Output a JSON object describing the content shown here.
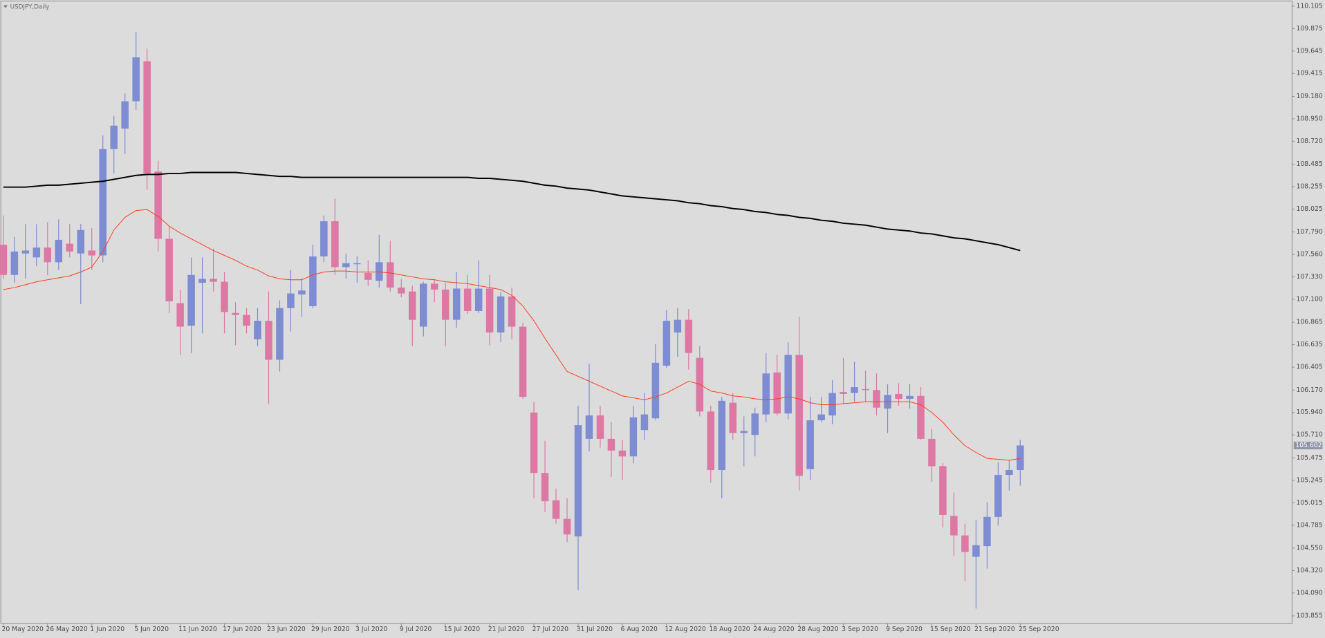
{
  "chart_data": {
    "type": "candlestick",
    "title": "USDJPY,Daily",
    "categories": [
      "20 May 2020",
      null,
      null,
      null,
      "26 May 2020",
      null,
      null,
      null,
      "1 Jun 2020",
      null,
      null,
      null,
      "5 Jun 2020",
      null,
      null,
      null,
      "11 Jun 2020",
      null,
      null,
      null,
      "17 Jun 2020",
      null,
      null,
      null,
      "23 Jun 2020",
      null,
      null,
      null,
      "29 Jun 2020",
      null,
      null,
      null,
      "3 Jul 2020",
      null,
      null,
      null,
      "9 Jul 2020",
      null,
      null,
      null,
      "15 Jul 2020",
      null,
      null,
      null,
      "21 Jul 2020",
      null,
      null,
      null,
      "27 Jul 2020",
      null,
      null,
      null,
      "31 Jul 2020",
      null,
      null,
      null,
      "6 Aug 2020",
      null,
      null,
      null,
      "12 Aug 2020",
      null,
      null,
      null,
      "18 Aug 2020",
      null,
      null,
      null,
      "24 Aug 2020",
      null,
      null,
      null,
      "28 Aug 2020",
      null,
      null,
      null,
      "3 Sep 2020",
      null,
      null,
      null,
      "9 Sep 2020",
      null,
      null,
      null,
      "15 Sep 2020",
      null,
      null,
      null,
      "21 Sep 2020",
      null,
      null,
      null,
      "25 Sep 2020"
    ],
    "open": [
      107.66,
      107.35,
      107.57,
      107.53,
      107.63,
      107.48,
      107.67,
      107.57,
      107.6,
      107.55,
      108.64,
      108.85,
      109.13,
      109.54,
      108.41,
      107.72,
      107.06,
      106.83,
      107.27,
      107.31,
      107.28,
      106.96,
      106.94,
      106.69,
      106.88,
      106.48,
      107.01,
      107.15,
      107.03,
      107.54,
      107.9,
      107.43,
      107.46,
      107.37,
      107.29,
      107.48,
      107.22,
      107.18,
      106.82,
      107.26,
      107.2,
      106.89,
      107.21,
      106.98,
      107.21,
      106.76,
      107.13,
      106.82,
      105.94,
      105.32,
      105.04,
      104.85,
      104.67,
      105.67,
      105.91,
      105.67,
      105.55,
      105.49,
      105.76,
      105.88,
      106.42,
      106.76,
      106.89,
      106.5,
      105.95,
      105.35,
      106.04,
      105.73,
      105.71,
      105.92,
      106.35,
      105.93,
      106.53,
      105.36,
      105.86,
      105.91,
      106.15,
      106.14,
      106.18,
      106.17,
      105.98,
      106.13,
      106.08,
      106.11,
      105.67,
      105.39,
      104.88,
      104.68,
      104.46,
      104.57,
      104.87,
      105.3,
      105.35
    ],
    "high": [
      107.96,
      107.74,
      107.87,
      107.87,
      107.89,
      107.92,
      107.87,
      107.87,
      107.83,
      108.78,
      108.98,
      109.21,
      109.84,
      109.67,
      108.52,
      107.85,
      107.2,
      107.53,
      107.53,
      107.62,
      107.38,
      107.07,
      107.01,
      107.01,
      107.18,
      107.09,
      107.4,
      107.31,
      107.66,
      107.96,
      108.13,
      107.57,
      107.54,
      107.5,
      107.76,
      107.7,
      107.31,
      107.24,
      107.28,
      107.31,
      107.27,
      107.38,
      107.35,
      107.5,
      107.35,
      107.18,
      107.22,
      106.86,
      106.05,
      105.65,
      105.16,
      105.06,
      106.01,
      106.44,
      106.01,
      105.84,
      105.66,
      106.01,
      106.14,
      106.64,
      106.99,
      107.01,
      107.0,
      106.62,
      106.01,
      106.1,
      106.14,
      105.9,
      105.99,
      106.55,
      106.53,
      106.66,
      106.92,
      106.1,
      106.1,
      106.27,
      106.5,
      106.46,
      106.37,
      106.34,
      106.23,
      106.24,
      106.23,
      106.2,
      105.77,
      105.42,
      105.12,
      104.8,
      104.84,
      105.02,
      105.43,
      105.45,
      105.66
    ],
    "low": [
      107.31,
      107.27,
      107.31,
      107.44,
      107.35,
      107.4,
      107.53,
      107.05,
      107.4,
      107.48,
      108.39,
      108.59,
      109.04,
      108.22,
      107.59,
      106.96,
      106.53,
      106.55,
      106.75,
      107.18,
      106.75,
      106.63,
      106.75,
      106.62,
      106.03,
      106.36,
      106.77,
      106.92,
      107.01,
      107.48,
      107.35,
      107.31,
      107.27,
      107.24,
      107.22,
      107.18,
      107.12,
      106.62,
      106.72,
      107.07,
      106.62,
      106.81,
      106.95,
      106.96,
      106.63,
      106.66,
      106.69,
      106.08,
      105.06,
      104.92,
      104.8,
      104.61,
      104.12,
      105.54,
      105.58,
      105.28,
      105.25,
      105.42,
      105.66,
      105.86,
      106.4,
      106.51,
      106.38,
      105.9,
      105.22,
      105.06,
      105.66,
      105.39,
      105.49,
      105.84,
      105.91,
      105.87,
      105.14,
      105.25,
      105.84,
      105.82,
      106.03,
      106.05,
      106.05,
      105.91,
      105.73,
      106.01,
      105.98,
      105.66,
      105.23,
      104.76,
      104.47,
      104.21,
      103.93,
      104.34,
      104.78,
      105.14,
      105.19
    ],
    "close": [
      107.35,
      107.59,
      107.6,
      107.63,
      107.48,
      107.71,
      107.59,
      107.81,
      107.55,
      108.64,
      108.88,
      109.13,
      109.58,
      108.39,
      107.72,
      107.08,
      106.82,
      107.35,
      107.31,
      107.28,
      106.97,
      106.94,
      106.83,
      106.88,
      106.48,
      107.01,
      107.16,
      107.19,
      107.54,
      107.9,
      107.43,
      107.47,
      107.47,
      107.3,
      107.48,
      107.22,
      107.16,
      106.89,
      107.26,
      107.2,
      106.89,
      107.21,
      106.98,
      107.21,
      106.76,
      107.13,
      106.82,
      106.1,
      105.32,
      105.03,
      104.85,
      104.69,
      105.81,
      105.91,
      105.67,
      105.55,
      105.49,
      105.89,
      105.92,
      106.45,
      106.88,
      106.89,
      106.55,
      105.95,
      105.35,
      106.06,
      105.73,
      105.75,
      105.93,
      106.34,
      105.93,
      106.53,
      105.29,
      105.86,
      105.92,
      106.14,
      106.13,
      106.2,
      106.17,
      105.99,
      106.12,
      106.08,
      106.11,
      105.67,
      105.39,
      104.89,
      104.68,
      104.51,
      104.58,
      104.87,
      105.3,
      105.35,
      105.602
    ],
    "up_color": "#7d8cd3",
    "down_color": "#dc78a3",
    "lines": [
      {
        "color": "#000000",
        "width": 2,
        "values": [
          108.25,
          108.25,
          108.25,
          108.26,
          108.27,
          108.27,
          108.28,
          108.29,
          108.3,
          108.31,
          108.33,
          108.35,
          108.37,
          108.38,
          108.38,
          108.39,
          108.39,
          108.4,
          108.4,
          108.4,
          108.4,
          108.4,
          108.39,
          108.38,
          108.37,
          108.36,
          108.36,
          108.35,
          108.35,
          108.35,
          108.35,
          108.35,
          108.35,
          108.35,
          108.35,
          108.35,
          108.35,
          108.35,
          108.35,
          108.35,
          108.35,
          108.35,
          108.35,
          108.34,
          108.34,
          108.33,
          108.32,
          108.31,
          108.29,
          108.27,
          108.26,
          108.24,
          108.23,
          108.22,
          108.2,
          108.18,
          108.16,
          108.15,
          108.14,
          108.13,
          108.12,
          108.11,
          108.09,
          108.08,
          108.06,
          108.05,
          108.03,
          108.02,
          108.0,
          107.99,
          107.97,
          107.96,
          107.94,
          107.93,
          107.91,
          107.9,
          107.88,
          107.87,
          107.86,
          107.84,
          107.82,
          107.81,
          107.8,
          107.78,
          107.77,
          107.75,
          107.73,
          107.72,
          107.7,
          107.68,
          107.66,
          107.63,
          107.6
        ]
      },
      {
        "color": "#ff3a1a",
        "width": 1,
        "values": [
          107.2,
          107.22,
          107.25,
          107.28,
          107.3,
          107.32,
          107.34,
          107.38,
          107.43,
          107.59,
          107.81,
          107.94,
          108.01,
          108.02,
          107.95,
          107.85,
          107.78,
          107.72,
          107.66,
          107.6,
          107.55,
          107.5,
          107.44,
          107.4,
          107.34,
          107.31,
          107.3,
          107.3,
          107.35,
          107.38,
          107.39,
          107.39,
          107.38,
          107.38,
          107.38,
          107.37,
          107.35,
          107.33,
          107.31,
          107.3,
          107.28,
          107.27,
          107.26,
          107.24,
          107.22,
          107.2,
          107.14,
          107.03,
          106.88,
          106.7,
          106.53,
          106.36,
          106.31,
          106.26,
          106.21,
          106.16,
          106.11,
          106.09,
          106.07,
          106.1,
          106.14,
          106.2,
          106.26,
          106.23,
          106.16,
          106.14,
          106.11,
          106.1,
          106.08,
          106.07,
          106.08,
          106.1,
          106.08,
          106.04,
          106.02,
          106.02,
          106.03,
          106.04,
          106.05,
          106.05,
          106.05,
          106.05,
          106.05,
          106.02,
          105.94,
          105.84,
          105.71,
          105.6,
          105.53,
          105.47,
          105.46,
          105.45,
          105.47
        ]
      }
    ],
    "current_price": 105.602,
    "ylim": [
      103.786,
      110.149
    ],
    "yticks": [
      110.105,
      109.875,
      109.645,
      109.415,
      {
        "value": 109.18,
        "label": "109.180"
      },
      {
        "value": 108.95,
        "label": "108.950"
      },
      {
        "value": 108.72,
        "label": "108.720"
      },
      108.485,
      108.255,
      108.025,
      {
        "value": 107.79,
        "label": "107.790"
      },
      {
        "value": 107.56,
        "label": "107.560"
      },
      {
        "value": 107.33,
        "label": "107.330"
      },
      {
        "value": 107.1,
        "label": "107.100"
      },
      106.865,
      106.635,
      106.405,
      {
        "value": 106.17,
        "label": "106.170"
      },
      {
        "value": 105.94,
        "label": "105.940"
      },
      {
        "value": 105.71,
        "label": "105.710"
      },
      105.475,
      105.245,
      105.015,
      104.785,
      {
        "value": 104.55,
        "label": "104.550"
      },
      {
        "value": 104.32,
        "label": "104.320"
      },
      {
        "value": 104.09,
        "label": "104.090"
      },
      103.855
    ]
  }
}
